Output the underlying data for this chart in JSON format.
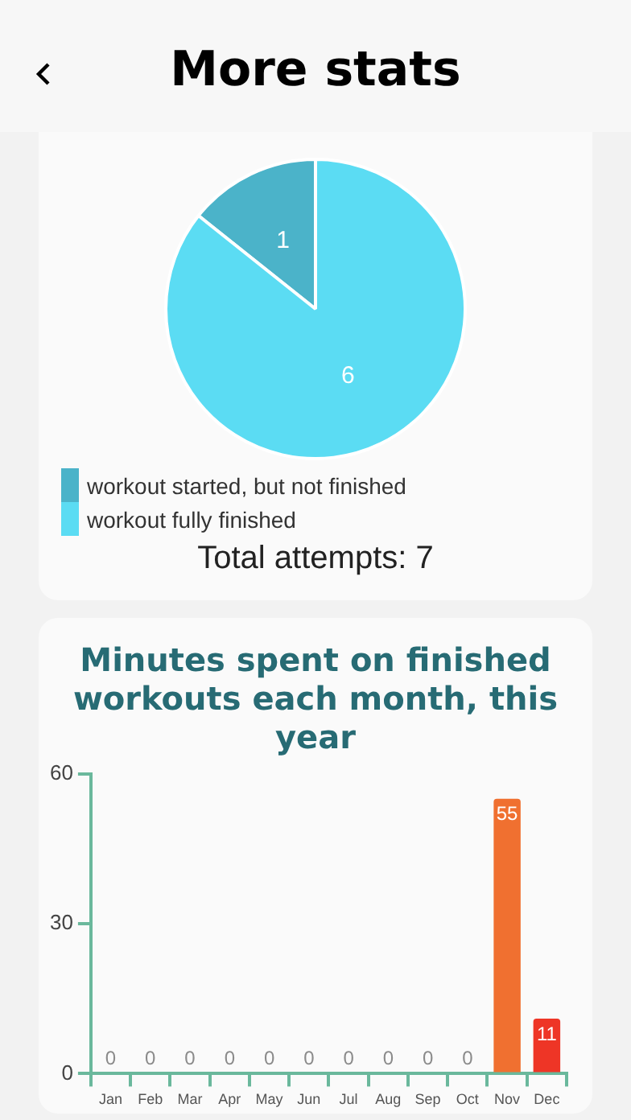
{
  "chart_data": [
    {
      "type": "pie",
      "categories": [
        "workout started, but not finished",
        "workout fully finished"
      ],
      "values": [
        1,
        6
      ],
      "colors": [
        "#4bb3c9",
        "#5bdcf3"
      ],
      "data_labels": true,
      "legend": "bottom",
      "annotations": [
        "More stats",
        "Total attempts: 7"
      ]
    },
    {
      "type": "bar",
      "title": "Minutes spent on finished workouts each month, this year",
      "categories": [
        "Jan",
        "Feb",
        "Mar",
        "Apr",
        "May",
        "Jun",
        "Jul",
        "Aug",
        "Sep",
        "Oct",
        "Nov",
        "Dec"
      ],
      "values": [
        0,
        0,
        0,
        0,
        0,
        0,
        0,
        0,
        0,
        0,
        55,
        11
      ],
      "colors": [
        "#f07030",
        "#f07030",
        "#f07030",
        "#f07030",
        "#f07030",
        "#f07030",
        "#f07030",
        "#f07030",
        "#f07030",
        "#f07030",
        "#f07030",
        "#ee3526"
      ],
      "ylim": [
        0,
        60
      ],
      "yticks": [
        0,
        30,
        60
      ],
      "data_labels": true,
      "grid": false,
      "legend": false
    }
  ]
}
